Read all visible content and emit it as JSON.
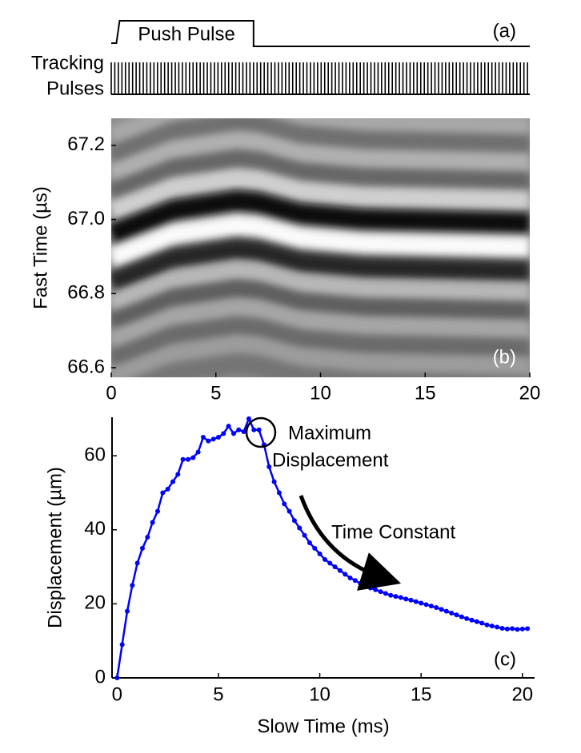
{
  "chart_data": [
    {
      "type": "timing",
      "label": "(a)",
      "push_label": "Push Pulse",
      "tracking_label": [
        "Tracking",
        "Pulses"
      ],
      "push_pulse": [
        0.4,
        6.8
      ],
      "pulse_interval": 0.17,
      "xlim": [
        0,
        20
      ]
    },
    {
      "type": "heatmap",
      "label": "(b)",
      "ylabel": "Fast Time (µs)",
      "xlim": [
        0,
        20
      ],
      "ylim": [
        66.574,
        67.273
      ],
      "xticks": [
        0,
        5,
        10,
        15,
        20
      ],
      "yticks": [
        66.6,
        66.8,
        {
          "value": 67,
          "label": "67.0"
        },
        67.2
      ],
      "background": "#8c8c8c",
      "x": [
        0,
        3,
        6,
        7,
        9,
        12,
        20
      ],
      "bands": [
        {
          "color": "#a8a8a8",
          "y": [
            67.22,
            67.285,
            67.31,
            67.305,
            67.275,
            67.26,
            67.25
          ]
        },
        {
          "color": "#707070",
          "y": [
            67.17,
            67.235,
            67.26,
            67.255,
            67.225,
            67.21,
            67.2
          ]
        },
        {
          "color": "#b0b0b0",
          "y": [
            67.12,
            67.185,
            67.21,
            67.205,
            67.175,
            67.16,
            67.15
          ]
        },
        {
          "color": "#666666",
          "y": [
            67.07,
            67.135,
            67.16,
            67.155,
            67.125,
            67.11,
            67.1
          ]
        },
        {
          "color": "#cfcfcf",
          "y": [
            67.02,
            67.085,
            67.11,
            67.105,
            67.075,
            67.06,
            67.05
          ]
        },
        {
          "color": "#0d0d0d",
          "y": [
            66.96,
            67.025,
            67.05,
            67.045,
            67.015,
            67.0,
            66.99
          ]
        },
        {
          "color": "#fafafa",
          "y": [
            66.895,
            66.96,
            66.985,
            66.98,
            66.95,
            66.935,
            66.925
          ]
        },
        {
          "color": "#262626",
          "y": [
            66.83,
            66.895,
            66.92,
            66.915,
            66.885,
            66.87,
            66.86
          ]
        },
        {
          "color": "#b8b8b8",
          "y": [
            66.77,
            66.835,
            66.86,
            66.855,
            66.825,
            66.81,
            66.8
          ]
        },
        {
          "color": "#5e5e5e",
          "y": [
            66.72,
            66.785,
            66.81,
            66.805,
            66.775,
            66.76,
            66.75
          ]
        },
        {
          "color": "#a6a6a6",
          "y": [
            66.67,
            66.735,
            66.76,
            66.755,
            66.725,
            66.71,
            66.7
          ]
        },
        {
          "color": "#6b6b6b",
          "y": [
            66.62,
            66.685,
            66.71,
            66.705,
            66.675,
            66.66,
            66.65
          ]
        },
        {
          "color": "#9c9c9c",
          "y": [
            66.57,
            66.635,
            66.66,
            66.655,
            66.625,
            66.61,
            66.6
          ]
        },
        {
          "color": "#747474",
          "y": [
            66.52,
            66.585,
            66.61,
            66.605,
            66.575,
            66.56,
            66.55
          ]
        }
      ]
    },
    {
      "type": "line",
      "label": "(c)",
      "xlabel": "Slow Time (ms)",
      "ylabel": "Displacement (µm)",
      "annotations": [
        "Maximum",
        "Displacement",
        "Time Constant"
      ],
      "xlim": [
        -0.25,
        20.6
      ],
      "ylim": [
        0,
        70.4
      ],
      "xticks": [
        0,
        5,
        10,
        15,
        20
      ],
      "yticks": [
        0,
        20,
        40,
        60
      ],
      "color": "#0000ff",
      "x": [
        0,
        0.25,
        0.5,
        0.75,
        1.0,
        1.25,
        1.5,
        1.75,
        2.0,
        2.25,
        2.5,
        2.75,
        3.0,
        3.25,
        3.5,
        3.75,
        4.0,
        4.25,
        4.5,
        4.75,
        5.0,
        5.25,
        5.5,
        5.75,
        6.0,
        6.25,
        6.5,
        6.75,
        7.0,
        7.25,
        7.5,
        7.75,
        8.0,
        8.25,
        8.5,
        8.75,
        9.0,
        9.25,
        9.5,
        9.75,
        10.0,
        10.25,
        10.5,
        10.75,
        11.0,
        11.25,
        11.5,
        11.75,
        12.0,
        12.25,
        12.5,
        12.75,
        13.0,
        13.25,
        13.5,
        13.75,
        14.0,
        14.25,
        14.5,
        14.75,
        15.0,
        15.25,
        15.5,
        15.75,
        16.0,
        16.25,
        16.5,
        16.75,
        17.0,
        17.25,
        17.5,
        17.75,
        18.0,
        18.25,
        18.5,
        18.75,
        19.0,
        19.25,
        19.5,
        19.75,
        20.0,
        20.25
      ],
      "values": [
        0,
        9,
        18,
        25,
        31,
        35,
        38,
        42,
        45,
        50,
        51,
        53,
        55,
        59,
        59,
        59.5,
        61,
        65,
        64,
        64.5,
        65,
        66,
        68,
        66,
        67,
        66.5,
        70,
        67,
        67,
        63,
        57,
        53,
        50,
        47,
        45,
        42.5,
        40.5,
        38.5,
        36.5,
        35,
        33.5,
        32,
        31,
        30,
        29,
        28,
        27,
        26.3,
        25.5,
        25,
        24.3,
        23.8,
        23.3,
        22.8,
        22.3,
        22,
        21.7,
        21.3,
        21,
        20.6,
        20.2,
        19.8,
        19.4,
        19,
        18.5,
        18,
        17.5,
        17,
        16.5,
        16,
        15.6,
        15.2,
        14.8,
        14.3,
        14,
        13.7,
        13.4,
        13.2,
        13.3,
        13.1,
        13.2,
        13.3
      ]
    }
  ]
}
